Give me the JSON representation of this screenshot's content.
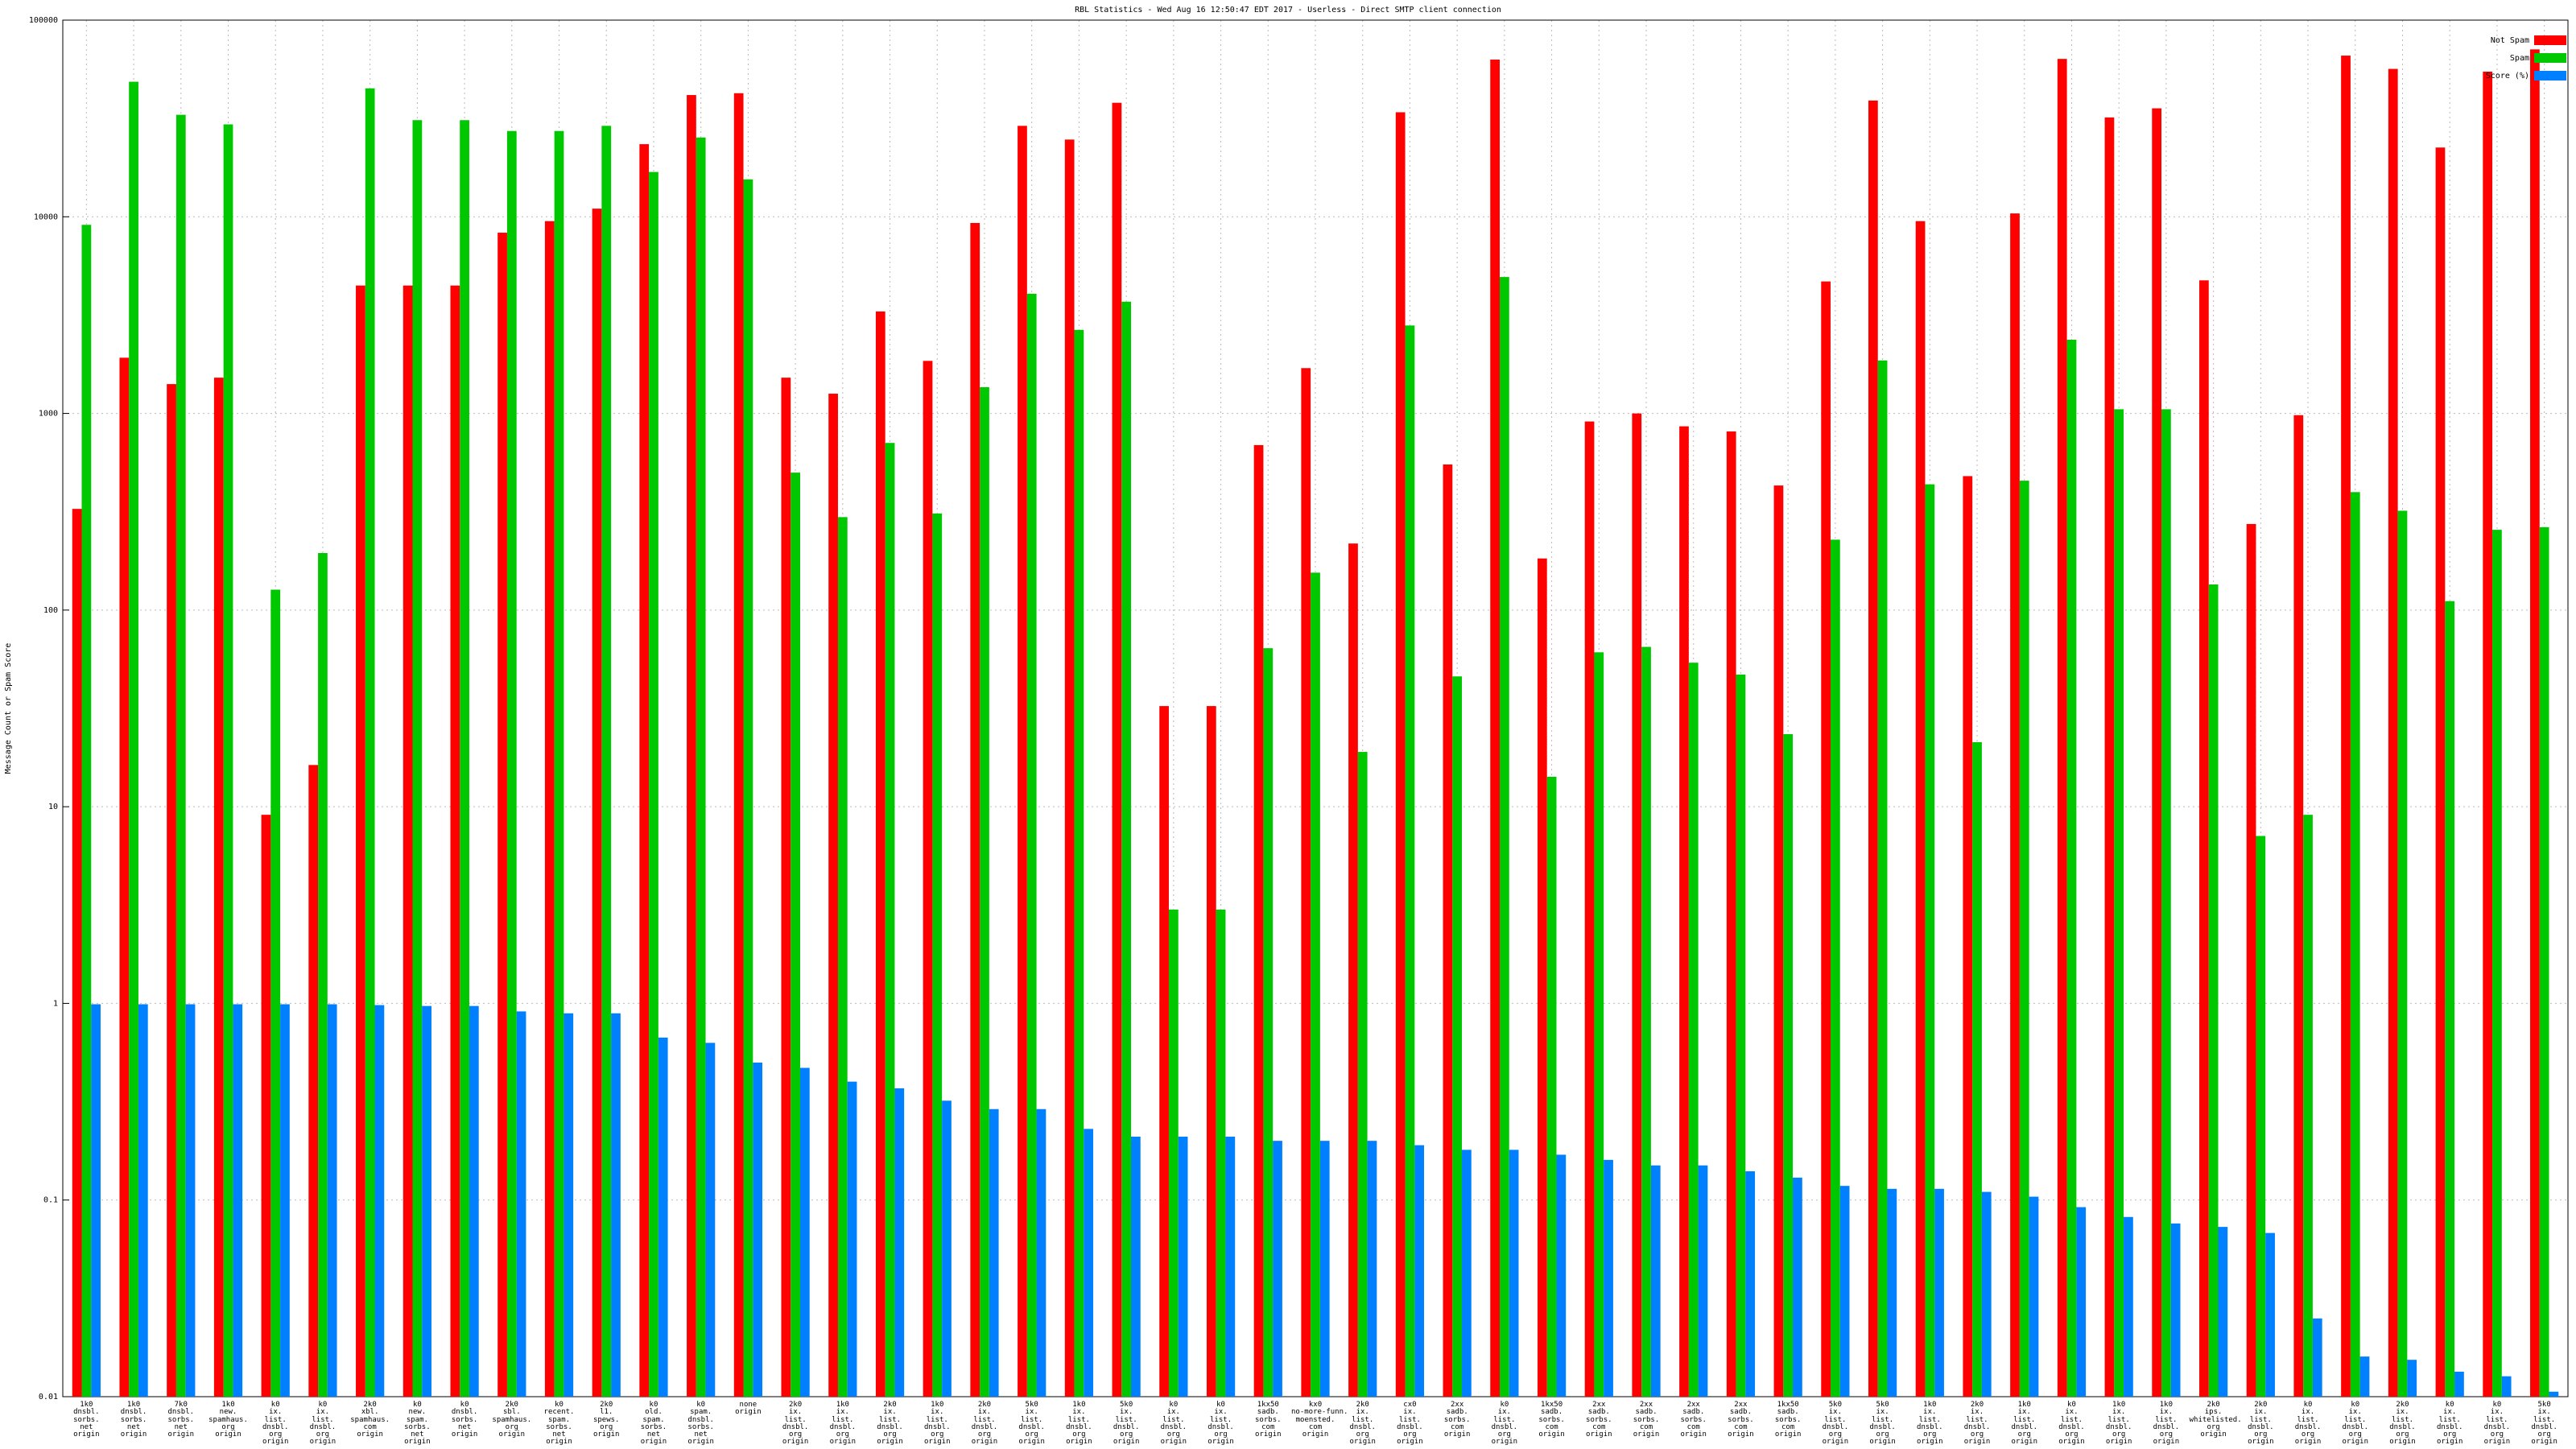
{
  "chart_data": {
    "type": "bar",
    "title": "RBL Statistics - Wed Aug 16 12:50:47 EDT 2017 - Userless - Direct SMTP client connection",
    "y_label": "Message Count or Spam Score",
    "log_scale": true,
    "grid": true,
    "legend": "top-right",
    "ylim": [
      0.01,
      100000
    ],
    "yticks": [
      0.01,
      0.1,
      1,
      10,
      100,
      1000,
      10000,
      100000
    ],
    "categories": [
      "1k0\ndnsbl.\nsorbs.\nnet\norigin",
      "1k0\ndnsbl.\nsorbs.\nnet\norigin",
      "7k0\ndnsbl.\nsorbs.\nnet\norigin",
      "1k0\nnew.\nspamhaus.\norg\norigin",
      "k0\nix.\nlist.\ndnsbl.\norg\norigin",
      "k0\nix.\nlist.\ndnsbl.\norg\norigin",
      "2k0\nxbl.\nspamhaus.\ncom\norigin",
      "k0\nnew.\nspam.\nsorbs.\nnet\norigin",
      "k0\ndnsbl.\nsorbs.\nnet\norigin",
      "2k0\nsbl.\nspamhaus.\norg\norigin",
      "k0\nrecent.\nspam.\nsorbs.\nnet\norigin",
      "2k0\nl1.\nspews.\norg\norigin",
      "k0\nold.\nspam.\nsorbs.\nnet\norigin",
      "k0\nspam.\ndnsbl.\nsorbs.\nnet\norigin",
      "none\norigin",
      "2k0\nix.\nlist.\ndnsbl.\norg\norigin",
      "1k0\nix.\nlist.\ndnsbl.\norg\norigin",
      "2k0\nix.\nlist.\ndnsbl.\norg\norigin",
      "1k0\nix.\nlist.\ndnsbl.\norg\norigin",
      "2k0\nix.\nlist.\ndnsbl.\norg\norigin",
      "5k0\nix.\nlist.\ndnsbl.\norg\norigin",
      "1k0\nix.\nlist.\ndnsbl.\norg\norigin",
      "5k0\nix.\nlist.\ndnsbl.\norg\norigin",
      "k0\nix.\nlist.\ndnsbl.\norg\norigin",
      "k0\nix.\nlist.\ndnsbl.\norg\norigin",
      "1kx50\nsadb.\nsorbs.\ncom\norigin",
      "kx0\nno-more-funn.\nmoensted.\ncom\norigin",
      "2k0\nix.\nlist.\ndnsbl.\norg\norigin",
      "cx0\nix.\nlist.\ndnsbl.\norg\norigin",
      "2xx\nsadb.\nsorbs.\ncom\norigin",
      "k0\nix.\nlist.\ndnsbl.\norg\norigin",
      "1kx50\nsadb.\nsorbs.\ncom\norigin",
      "2xx\nsadb.\nsorbs.\ncom\norigin",
      "2xx\nsadb.\nsorbs.\ncom\norigin",
      "2xx\nsadb.\nsorbs.\ncom\norigin",
      "2xx\nsadb.\nsorbs.\ncom\norigin",
      "1kx50\nsadb.\nsorbs.\ncom\norigin",
      "5k0\nix.\nlist.\ndnsbl.\norg\norigin",
      "5k0\nix.\nlist.\ndnsbl.\norg\norigin",
      "1k0\nix.\nlist.\ndnsbl.\norg\norigin",
      "2k0\nix.\nlist.\ndnsbl.\norg\norigin",
      "1k0\nix.\nlist.\ndnsbl.\norg\norigin",
      "k0\nix.\nlist.\ndnsbl.\norg\norigin",
      "1k0\nix.\nlist.\ndnsbl.\norg\norigin",
      "1k0\nix.\nlist.\ndnsbl.\norg\norigin",
      "2k0\nips.\nwhitelisted.\norg\norigin",
      "2k0\nix.\nlist.\ndnsbl.\norg\norigin",
      "k0\nix.\nlist.\ndnsbl.\norg\norigin",
      "k0\nix.\nlist.\ndnsbl.\norg\norigin",
      "2k0\nix.\nlist.\ndnsbl.\norg\norigin",
      "k0\nix.\nlist.\ndnsbl.\norg\norigin",
      "k0\nix.\nlist.\ndnsbl.\norg\norigin",
      "5k0\nix.\nlist.\ndnsbl.\norg\norigin"
    ],
    "series": [
      {
        "name": "Not Spam",
        "color": "#ff0000",
        "values": [
          327,
          1920,
          1410,
          1520,
          9.1,
          16.3,
          4470,
          4470,
          4470,
          8300,
          9500,
          11000,
          23400,
          41600,
          42500,
          1520,
          1260,
          3300,
          1850,
          9300,
          29000,
          24700,
          38000,
          32.5,
          32.5,
          690,
          1700,
          218,
          34000,
          550,
          63000,
          183,
          910,
          1000,
          860,
          810,
          430,
          4690,
          39000,
          9500,
          480,
          10400,
          63500,
          32000,
          35600,
          4750,
          274,
          980,
          66000,
          56500,
          22500,
          54700,
          71000
        ]
      },
      {
        "name": "Spam",
        "color": "#00c800",
        "values": [
          9100,
          48600,
          33000,
          29500,
          127,
          195,
          45000,
          31000,
          31000,
          27300,
          27300,
          29000,
          16900,
          25300,
          15500,
          500,
          297,
          708,
          310,
          1360,
          4060,
          2660,
          3700,
          3.0,
          3.0,
          64,
          155,
          19,
          2800,
          46,
          4940,
          14.2,
          61,
          65,
          54,
          47,
          23.4,
          228,
          1860,
          436,
          21.3,
          455,
          2370,
          1050,
          1050,
          135,
          7.1,
          9.1,
          398,
          320,
          111,
          256,
          264
        ]
      },
      {
        "name": "Score (%)",
        "color": "#0080ff",
        "values": [
          0.99,
          0.99,
          0.99,
          0.99,
          0.99,
          0.99,
          0.98,
          0.97,
          0.97,
          0.91,
          0.89,
          0.89,
          0.67,
          0.63,
          0.5,
          0.47,
          0.4,
          0.37,
          0.32,
          0.29,
          0.29,
          0.23,
          0.21,
          0.21,
          0.21,
          0.2,
          0.2,
          0.2,
          0.19,
          0.18,
          0.18,
          0.17,
          0.16,
          0.15,
          0.15,
          0.14,
          0.13,
          0.118,
          0.114,
          0.114,
          0.11,
          0.104,
          0.092,
          0.082,
          0.076,
          0.073,
          0.068,
          0.025,
          0.016,
          0.0154,
          0.0134,
          0.0127,
          0.0106
        ]
      }
    ]
  }
}
